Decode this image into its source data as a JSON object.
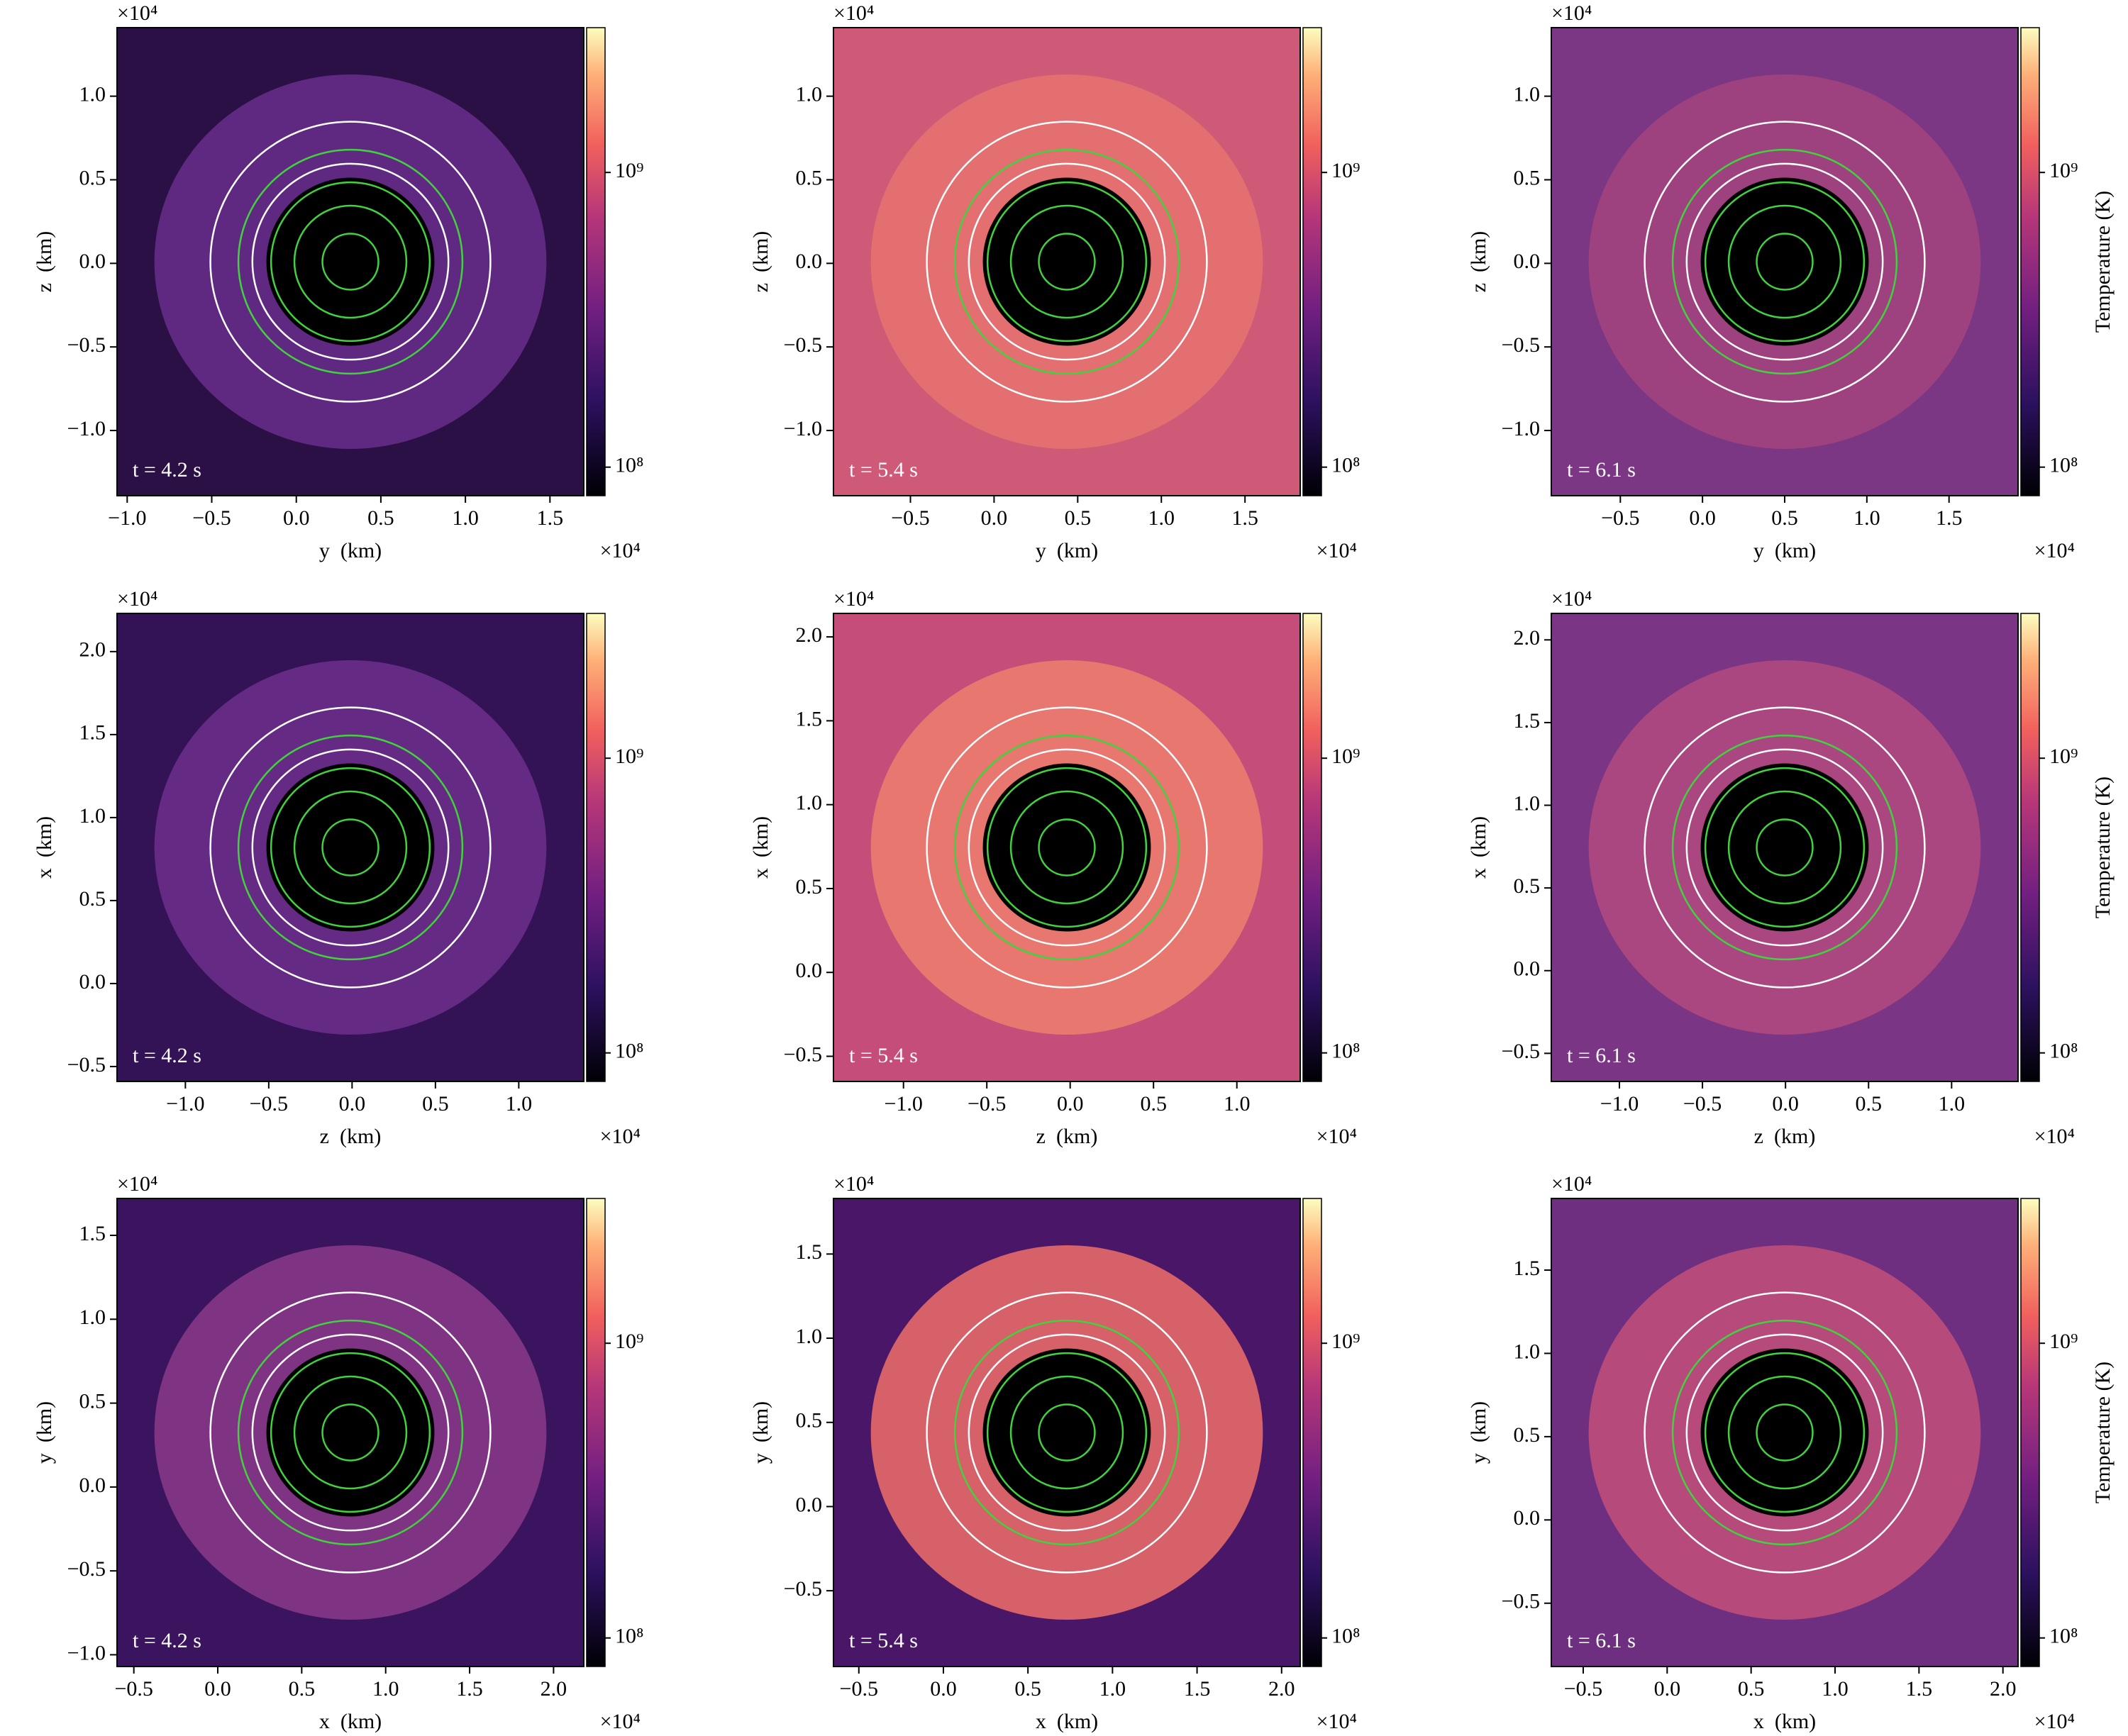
{
  "chart_data": [
    {
      "type": "heatmap",
      "xlabel": "y  (km)",
      "ylabel": "z  (km)",
      "annotation": "t = 4.2 s",
      "x_offset_label": "×10⁴",
      "y_offset_label": "×10⁴",
      "xlim": [
        -1.06,
        1.7
      ],
      "ylim": [
        -1.39,
        1.41
      ],
      "xticks": [
        {
          "value": -1,
          "label": "−1.0"
        },
        {
          "value": -0.5,
          "label": "−0.5"
        },
        {
          "value": 0,
          "label": "0.0"
        },
        {
          "value": 0.5,
          "label": "0.5"
        },
        {
          "value": 1,
          "label": "1.0"
        },
        {
          "value": 1.5,
          "label": "1.5"
        }
      ],
      "yticks": [
        {
          "value": -1,
          "label": "−1.0"
        },
        {
          "value": -0.5,
          "label": "−0.5"
        },
        {
          "value": 0,
          "label": "0.0"
        },
        {
          "value": 0.5,
          "label": "0.5"
        },
        {
          "value": 1,
          "label": "1.0"
        }
      ],
      "colorbar": {
        "colormap": "magma",
        "log_scale": true,
        "lim": [
          80000000,
          3100000000
        ],
        "ticks": [
          {
            "value": 100000000,
            "label": "10⁸"
          },
          {
            "value": 1000000000,
            "label": "10⁹"
          }
        ]
      }
    },
    {
      "type": "heatmap",
      "xlabel": "y  (km)",
      "ylabel": "z  (km)",
      "annotation": "t = 5.4 s",
      "x_offset_label": "×10⁴",
      "y_offset_label": "×10⁴",
      "xlim": [
        -0.96,
        1.83
      ],
      "ylim": [
        -1.39,
        1.41
      ],
      "xticks": [
        {
          "value": -0.5,
          "label": "−0.5"
        },
        {
          "value": 0,
          "label": "0.0"
        },
        {
          "value": 0.5,
          "label": "0.5"
        },
        {
          "value": 1,
          "label": "1.0"
        },
        {
          "value": 1.5,
          "label": "1.5"
        }
      ],
      "yticks": [
        {
          "value": -1,
          "label": "−1.0"
        },
        {
          "value": -0.5,
          "label": "−0.5"
        },
        {
          "value": 0,
          "label": "0.0"
        },
        {
          "value": 0.5,
          "label": "0.5"
        },
        {
          "value": 1,
          "label": "1.0"
        }
      ],
      "colorbar": {
        "colormap": "magma",
        "log_scale": true,
        "lim": [
          80000000,
          3100000000
        ],
        "ticks": [
          {
            "value": 100000000,
            "label": "10⁸"
          },
          {
            "value": 1000000000,
            "label": "10⁹"
          }
        ]
      }
    },
    {
      "type": "heatmap",
      "xlabel": "y  (km)",
      "ylabel": "z  (km)",
      "annotation": "t = 6.1 s",
      "x_offset_label": "×10⁴",
      "y_offset_label": "×10⁴",
      "xlim": [
        -0.92,
        1.92
      ],
      "ylim": [
        -1.39,
        1.41
      ],
      "xticks": [
        {
          "value": -0.5,
          "label": "−0.5"
        },
        {
          "value": 0,
          "label": "0.0"
        },
        {
          "value": 0.5,
          "label": "0.5"
        },
        {
          "value": 1,
          "label": "1.0"
        },
        {
          "value": 1.5,
          "label": "1.5"
        }
      ],
      "yticks": [
        {
          "value": -1,
          "label": "−1.0"
        },
        {
          "value": -0.5,
          "label": "−0.5"
        },
        {
          "value": 0,
          "label": "0.0"
        },
        {
          "value": 0.5,
          "label": "0.5"
        },
        {
          "value": 1,
          "label": "1.0"
        }
      ],
      "colorbar": {
        "colormap": "magma",
        "log_scale": true,
        "lim": [
          80000000,
          3100000000
        ],
        "ticks": [
          {
            "value": 100000000,
            "label": "10⁸"
          },
          {
            "value": 1000000000,
            "label": "10⁹"
          }
        ],
        "label": "Temperature (K)"
      }
    },
    {
      "type": "heatmap",
      "xlabel": "z  (km)",
      "ylabel": "x  (km)",
      "annotation": "t = 4.2 s",
      "x_offset_label": "×10⁴",
      "y_offset_label": "×10⁴",
      "xlim": [
        -1.41,
        1.39
      ],
      "ylim": [
        -0.59,
        2.23
      ],
      "xticks": [
        {
          "value": -1,
          "label": "−1.0"
        },
        {
          "value": -0.5,
          "label": "−0.5"
        },
        {
          "value": 0,
          "label": "0.0"
        },
        {
          "value": 0.5,
          "label": "0.5"
        },
        {
          "value": 1,
          "label": "1.0"
        }
      ],
      "yticks": [
        {
          "value": -0.5,
          "label": "−0.5"
        },
        {
          "value": 0,
          "label": "0.0"
        },
        {
          "value": 0.5,
          "label": "0.5"
        },
        {
          "value": 1,
          "label": "1.0"
        },
        {
          "value": 1.5,
          "label": "1.5"
        },
        {
          "value": 2,
          "label": "2.0"
        }
      ],
      "colorbar": {
        "colormap": "magma",
        "log_scale": true,
        "lim": [
          80000000,
          3100000000
        ],
        "ticks": [
          {
            "value": 100000000,
            "label": "10⁸"
          },
          {
            "value": 1000000000,
            "label": "10⁹"
          }
        ]
      }
    },
    {
      "type": "heatmap",
      "xlabel": "z  (km)",
      "ylabel": "x  (km)",
      "annotation": "t = 5.4 s",
      "x_offset_label": "×10⁴",
      "y_offset_label": "×10⁴",
      "xlim": [
        -1.42,
        1.38
      ],
      "ylim": [
        -0.65,
        2.14
      ],
      "xticks": [
        {
          "value": -1,
          "label": "−1.0"
        },
        {
          "value": -0.5,
          "label": "−0.5"
        },
        {
          "value": 0,
          "label": "0.0"
        },
        {
          "value": 0.5,
          "label": "0.5"
        },
        {
          "value": 1,
          "label": "1.0"
        }
      ],
      "yticks": [
        {
          "value": -0.5,
          "label": "−0.5"
        },
        {
          "value": 0,
          "label": "0.0"
        },
        {
          "value": 0.5,
          "label": "0.5"
        },
        {
          "value": 1,
          "label": "1.0"
        },
        {
          "value": 1.5,
          "label": "1.5"
        },
        {
          "value": 2,
          "label": "2.0"
        }
      ],
      "colorbar": {
        "colormap": "magma",
        "log_scale": true,
        "lim": [
          80000000,
          3100000000
        ],
        "ticks": [
          {
            "value": 100000000,
            "label": "10⁸"
          },
          {
            "value": 1000000000,
            "label": "10⁹"
          }
        ]
      }
    },
    {
      "type": "heatmap",
      "xlabel": "z  (km)",
      "ylabel": "x  (km)",
      "annotation": "t = 6.1 s",
      "x_offset_label": "×10⁴",
      "y_offset_label": "×10⁴",
      "xlim": [
        -1.41,
        1.4
      ],
      "ylim": [
        -0.67,
        2.16
      ],
      "xticks": [
        {
          "value": -1,
          "label": "−1.0"
        },
        {
          "value": -0.5,
          "label": "−0.5"
        },
        {
          "value": 0,
          "label": "0.0"
        },
        {
          "value": 0.5,
          "label": "0.5"
        },
        {
          "value": 1,
          "label": "1.0"
        }
      ],
      "yticks": [
        {
          "value": -0.5,
          "label": "−0.5"
        },
        {
          "value": 0,
          "label": "0.0"
        },
        {
          "value": 0.5,
          "label": "0.5"
        },
        {
          "value": 1,
          "label": "1.0"
        },
        {
          "value": 1.5,
          "label": "1.5"
        },
        {
          "value": 2,
          "label": "2.0"
        }
      ],
      "colorbar": {
        "colormap": "magma",
        "log_scale": true,
        "lim": [
          80000000,
          3100000000
        ],
        "ticks": [
          {
            "value": 100000000,
            "label": "10⁸"
          },
          {
            "value": 1000000000,
            "label": "10⁹"
          }
        ],
        "label": "Temperature (K)"
      }
    },
    {
      "type": "heatmap",
      "xlabel": "x  (km)",
      "ylabel": "y  (km)",
      "annotation": "t = 4.2 s",
      "x_offset_label": "×10⁴",
      "y_offset_label": "×10⁴",
      "xlim": [
        -0.6,
        2.18
      ],
      "ylim": [
        -1.07,
        1.72
      ],
      "xticks": [
        {
          "value": -0.5,
          "label": "−0.5"
        },
        {
          "value": 0,
          "label": "0.0"
        },
        {
          "value": 0.5,
          "label": "0.5"
        },
        {
          "value": 1,
          "label": "1.0"
        },
        {
          "value": 1.5,
          "label": "1.5"
        },
        {
          "value": 2,
          "label": "2.0"
        }
      ],
      "yticks": [
        {
          "value": -1,
          "label": "−1.0"
        },
        {
          "value": -0.5,
          "label": "−0.5"
        },
        {
          "value": 0,
          "label": "0.0"
        },
        {
          "value": 0.5,
          "label": "0.5"
        },
        {
          "value": 1,
          "label": "1.0"
        },
        {
          "value": 1.5,
          "label": "1.5"
        }
      ],
      "colorbar": {
        "colormap": "magma",
        "log_scale": true,
        "lim": [
          80000000,
          3100000000
        ],
        "ticks": [
          {
            "value": 100000000,
            "label": "10⁸"
          },
          {
            "value": 1000000000,
            "label": "10⁹"
          }
        ]
      }
    },
    {
      "type": "heatmap",
      "xlabel": "x  (km)",
      "ylabel": "y  (km)",
      "annotation": "t = 5.4 s",
      "x_offset_label": "×10⁴",
      "y_offset_label": "×10⁴",
      "xlim": [
        -0.65,
        2.11
      ],
      "ylim": [
        -0.95,
        1.83
      ],
      "xticks": [
        {
          "value": -0.5,
          "label": "−0.5"
        },
        {
          "value": 0,
          "label": "0.0"
        },
        {
          "value": 0.5,
          "label": "0.5"
        },
        {
          "value": 1,
          "label": "1.0"
        },
        {
          "value": 1.5,
          "label": "1.5"
        },
        {
          "value": 2,
          "label": "2.0"
        }
      ],
      "yticks": [
        {
          "value": -0.5,
          "label": "−0.5"
        },
        {
          "value": 0,
          "label": "0.0"
        },
        {
          "value": 0.5,
          "label": "0.5"
        },
        {
          "value": 1,
          "label": "1.0"
        },
        {
          "value": 1.5,
          "label": "1.5"
        }
      ],
      "colorbar": {
        "colormap": "magma",
        "log_scale": true,
        "lim": [
          80000000,
          3100000000
        ],
        "ticks": [
          {
            "value": 100000000,
            "label": "10⁸"
          },
          {
            "value": 1000000000,
            "label": "10⁹"
          }
        ]
      }
    },
    {
      "type": "heatmap",
      "xlabel": "x  (km)",
      "ylabel": "y  (km)",
      "annotation": "t = 6.1 s",
      "x_offset_label": "×10⁴",
      "y_offset_label": "×10⁴",
      "xlim": [
        -0.69,
        2.09
      ],
      "ylim": [
        -0.88,
        1.93
      ],
      "xticks": [
        {
          "value": -0.5,
          "label": "−0.5"
        },
        {
          "value": 0,
          "label": "0.0"
        },
        {
          "value": 0.5,
          "label": "0.5"
        },
        {
          "value": 1,
          "label": "1.0"
        },
        {
          "value": 1.5,
          "label": "1.5"
        },
        {
          "value": 2,
          "label": "2.0"
        }
      ],
      "yticks": [
        {
          "value": -0.5,
          "label": "−0.5"
        },
        {
          "value": 0,
          "label": "0.0"
        },
        {
          "value": 0.5,
          "label": "0.5"
        },
        {
          "value": 1,
          "label": "1.0"
        },
        {
          "value": 1.5,
          "label": "1.5"
        }
      ],
      "colorbar": {
        "colormap": "magma",
        "log_scale": true,
        "lim": [
          80000000,
          3100000000
        ],
        "ticks": [
          {
            "value": 100000000,
            "label": "10⁸"
          },
          {
            "value": 1000000000,
            "label": "10⁹"
          }
        ],
        "label": "Temperature (K)"
      }
    }
  ]
}
